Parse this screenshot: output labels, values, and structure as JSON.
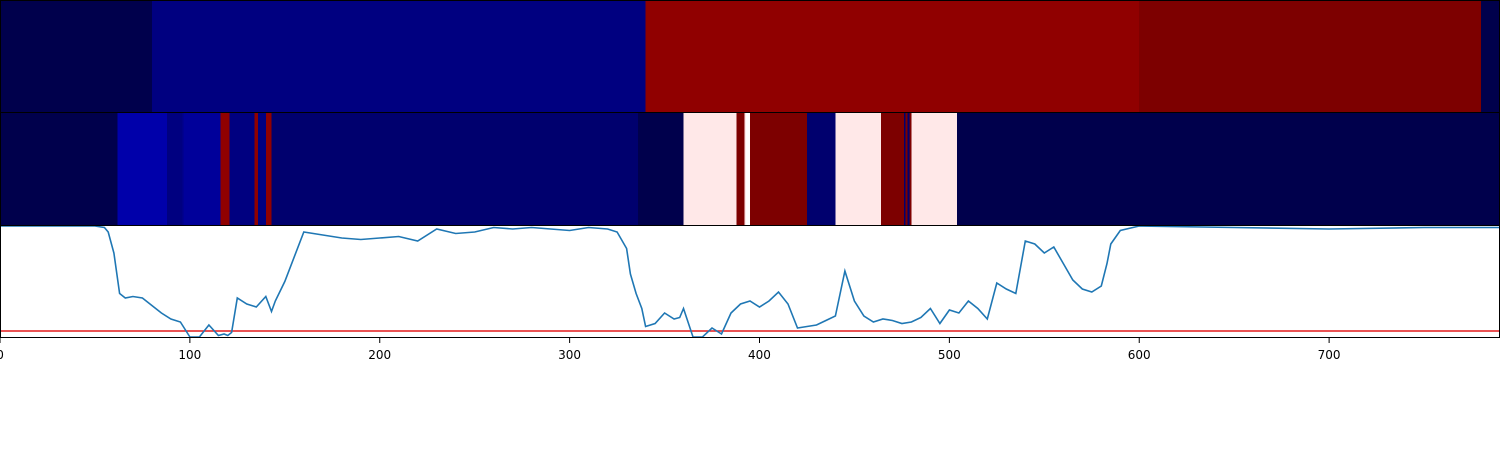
{
  "chart_data": [
    {
      "type": "heatmap",
      "xlim": [
        0,
        790
      ],
      "segments": [
        {
          "x0": 0,
          "x1": 80,
          "color": "#00004c"
        },
        {
          "x0": 80,
          "x1": 340,
          "color": "#000080"
        },
        {
          "x0": 340,
          "x1": 600,
          "color": "#900000"
        },
        {
          "x0": 600,
          "x1": 780,
          "color": "#7d0000"
        },
        {
          "x0": 780,
          "x1": 790,
          "color": "#00004c"
        }
      ]
    },
    {
      "type": "heatmap",
      "xlim": [
        0,
        790
      ],
      "segments": [
        {
          "x0": 0,
          "x1": 62,
          "color": "#00004c"
        },
        {
          "x0": 62,
          "x1": 88,
          "color": "#0000aa"
        },
        {
          "x0": 88,
          "x1": 96,
          "color": "#000080"
        },
        {
          "x0": 96,
          "x1": 97,
          "color": "#000090"
        },
        {
          "x0": 97,
          "x1": 116,
          "color": "#00009a"
        },
        {
          "x0": 116,
          "x1": 121,
          "color": "#900000"
        },
        {
          "x0": 121,
          "x1": 134,
          "color": "#000080"
        },
        {
          "x0": 134,
          "x1": 136,
          "color": "#900000"
        },
        {
          "x0": 136,
          "x1": 140,
          "color": "#000080"
        },
        {
          "x0": 140,
          "x1": 143,
          "color": "#900000"
        },
        {
          "x0": 143,
          "x1": 336,
          "color": "#00006e"
        },
        {
          "x0": 336,
          "x1": 360,
          "color": "#00004c"
        },
        {
          "x0": 360,
          "x1": 388,
          "color": "#ffe8e8"
        },
        {
          "x0": 388,
          "x1": 392,
          "color": "#7d0000"
        },
        {
          "x0": 392,
          "x1": 393,
          "color": "#ffe8e8"
        },
        {
          "x0": 393,
          "x1": 395,
          "color": "#ffffff"
        },
        {
          "x0": 395,
          "x1": 425,
          "color": "#7d0000"
        },
        {
          "x0": 425,
          "x1": 440,
          "color": "#00006e"
        },
        {
          "x0": 440,
          "x1": 464,
          "color": "#ffe8e8"
        },
        {
          "x0": 464,
          "x1": 476,
          "color": "#7d0000"
        },
        {
          "x0": 476,
          "x1": 477,
          "color": "#00006e"
        },
        {
          "x0": 477,
          "x1": 478,
          "color": "#7d0000"
        },
        {
          "x0": 478,
          "x1": 479,
          "color": "#00006e"
        },
        {
          "x0": 479,
          "x1": 480,
          "color": "#7d0000"
        },
        {
          "x0": 480,
          "x1": 504,
          "color": "#ffe8e8"
        },
        {
          "x0": 504,
          "x1": 790,
          "color": "#00004c"
        }
      ]
    },
    {
      "type": "line",
      "xlim": [
        0,
        790
      ],
      "ylim": [
        0,
        1
      ],
      "xticks": [
        0,
        100,
        200,
        300,
        400,
        500,
        600,
        700
      ],
      "xtick_labels": [
        "0",
        "100",
        "200",
        "300",
        "400",
        "500",
        "600",
        "700"
      ],
      "hline": {
        "y": 0.3,
        "color": "#e41a1c"
      },
      "series": [
        {
          "color": "#1f77b4",
          "x": [
            0,
            50,
            55,
            57,
            60,
            63,
            66,
            70,
            75,
            80,
            85,
            90,
            95,
            100,
            105,
            110,
            115,
            118,
            120,
            122,
            125,
            130,
            135,
            140,
            143,
            145,
            150,
            160,
            170,
            180,
            190,
            200,
            210,
            220,
            230,
            240,
            250,
            260,
            270,
            280,
            290,
            300,
            310,
            320,
            325,
            330,
            332,
            335,
            338,
            340,
            345,
            350,
            355,
            358,
            360,
            365,
            370,
            375,
            380,
            385,
            390,
            395,
            400,
            405,
            410,
            415,
            420,
            425,
            430,
            435,
            440,
            445,
            450,
            455,
            460,
            465,
            470,
            475,
            480,
            485,
            490,
            495,
            500,
            505,
            510,
            515,
            520,
            525,
            530,
            535,
            540,
            545,
            550,
            555,
            560,
            565,
            570,
            575,
            580,
            583,
            585,
            590,
            600,
            650,
            700,
            750,
            790
          ],
          "y": [
            1.0,
            1.0,
            0.99,
            0.96,
            0.82,
            0.55,
            0.52,
            0.53,
            0.52,
            0.47,
            0.42,
            0.38,
            0.36,
            0.23,
            0.24,
            0.34,
            0.27,
            0.28,
            0.27,
            0.29,
            0.52,
            0.48,
            0.46,
            0.53,
            0.43,
            0.5,
            0.63,
            0.96,
            0.94,
            0.92,
            0.91,
            0.92,
            0.93,
            0.9,
            0.98,
            0.95,
            0.96,
            0.99,
            0.98,
            0.99,
            0.98,
            0.97,
            0.99,
            0.98,
            0.96,
            0.85,
            0.68,
            0.55,
            0.45,
            0.33,
            0.35,
            0.42,
            0.38,
            0.39,
            0.45,
            0.2,
            0.25,
            0.32,
            0.28,
            0.42,
            0.48,
            0.5,
            0.46,
            0.5,
            0.56,
            0.48,
            0.32,
            0.33,
            0.34,
            0.37,
            0.4,
            0.7,
            0.5,
            0.4,
            0.36,
            0.38,
            0.37,
            0.35,
            0.36,
            0.39,
            0.45,
            0.35,
            0.44,
            0.42,
            0.5,
            0.45,
            0.38,
            0.62,
            0.58,
            0.55,
            0.9,
            0.88,
            0.82,
            0.86,
            0.75,
            0.64,
            0.58,
            0.56,
            0.6,
            0.75,
            0.88,
            0.97,
            1.0,
            0.99,
            0.98,
            0.99,
            0.99
          ]
        }
      ]
    }
  ]
}
